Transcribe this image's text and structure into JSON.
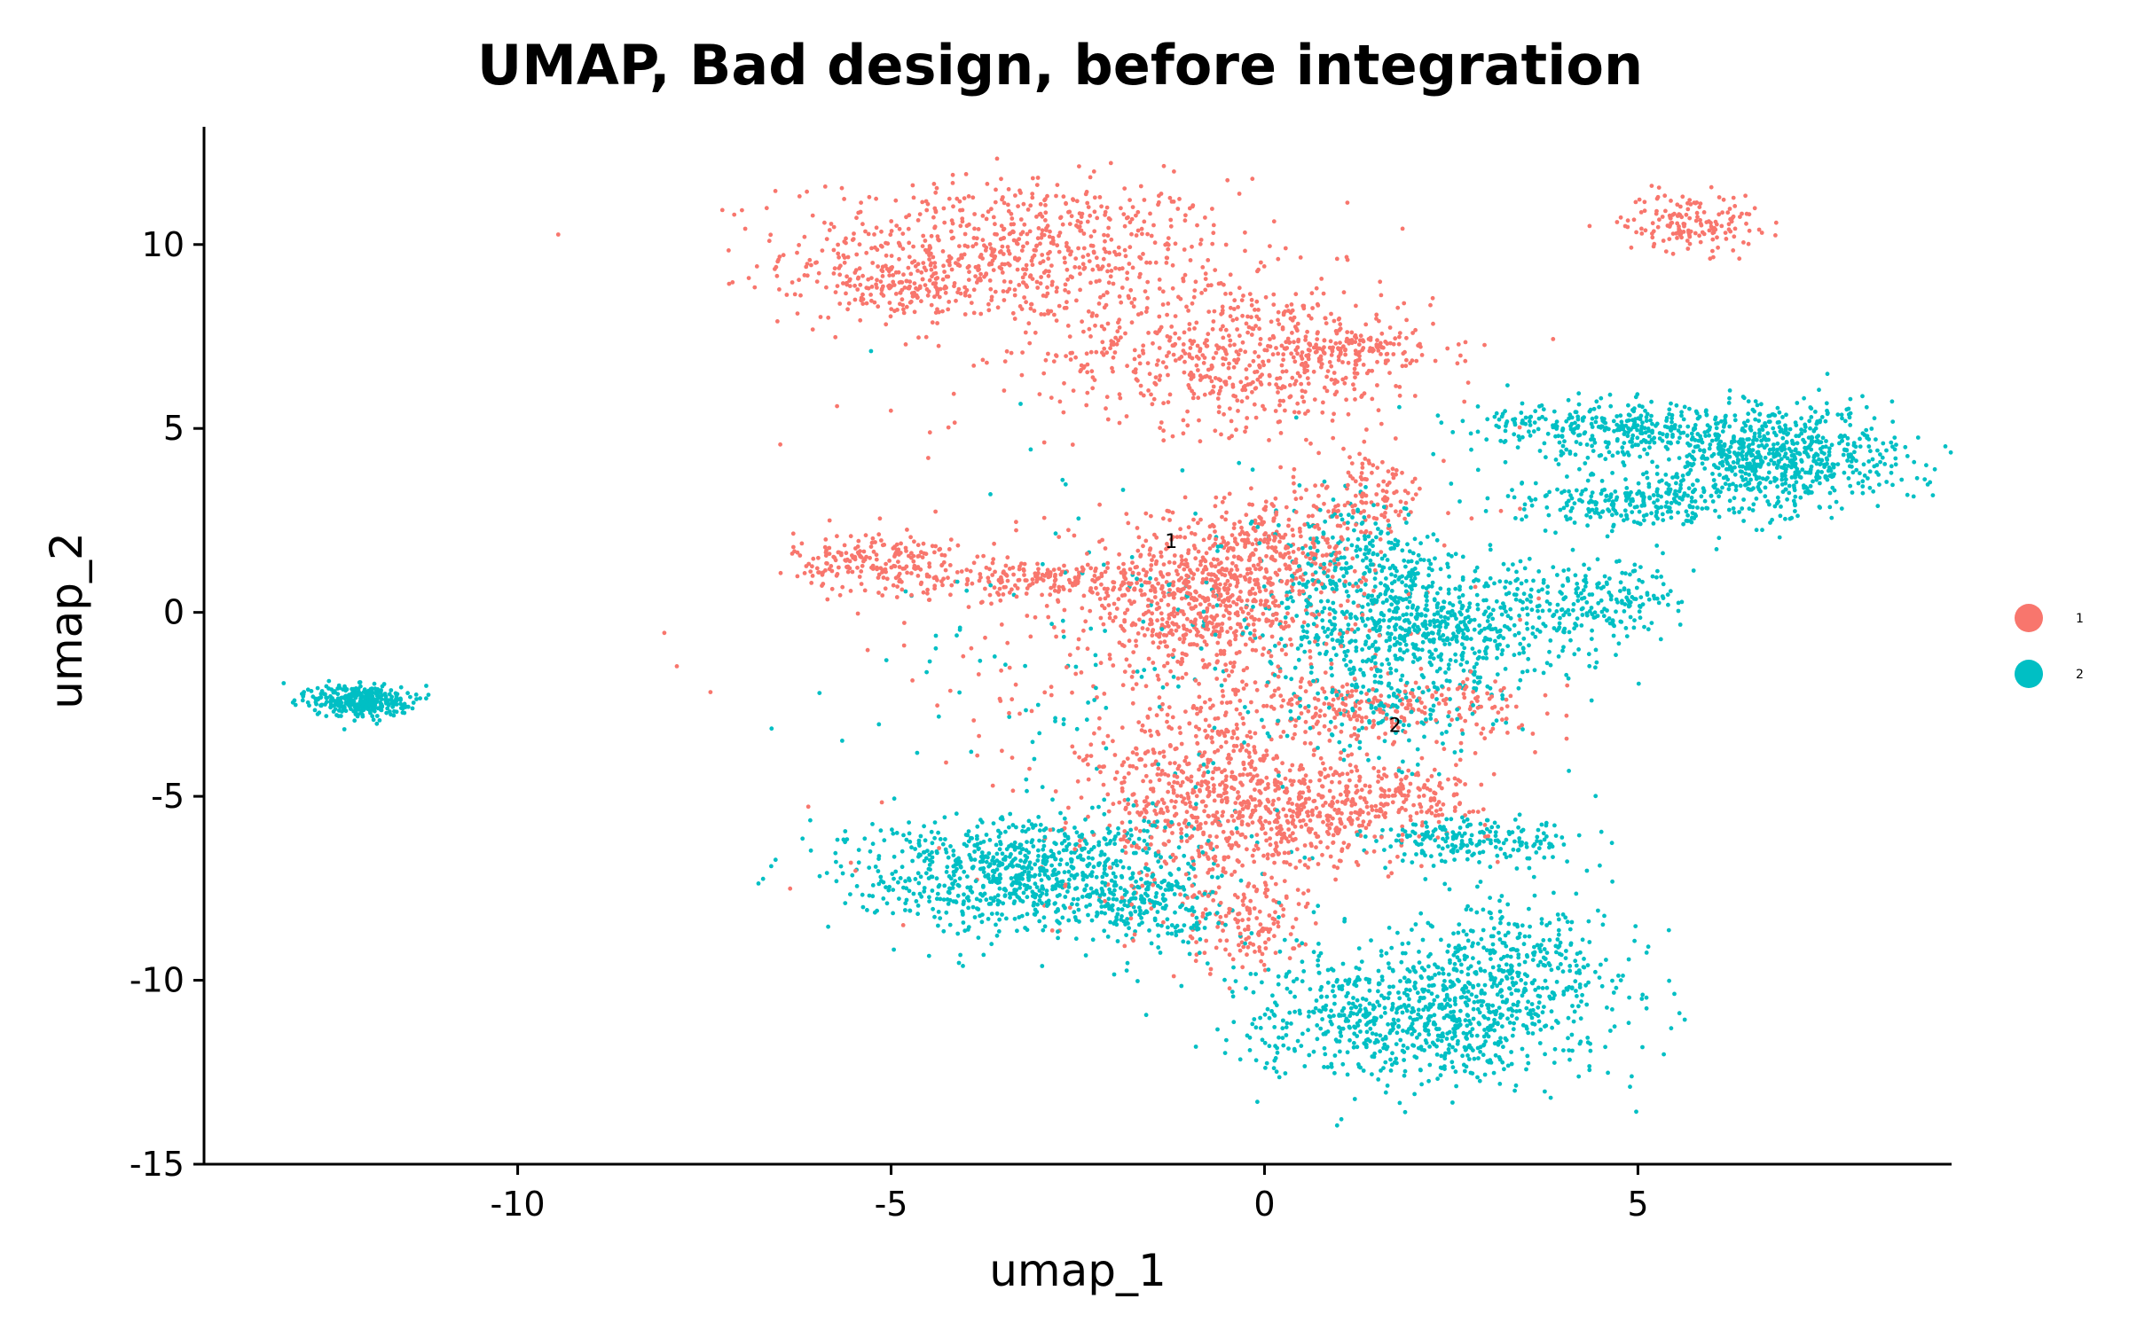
{
  "chart_data": {
    "type": "scatter",
    "title": "UMAP, Bad design, before integration",
    "xlabel": "umap_1",
    "ylabel": "umap_2",
    "xlim": [
      -14.2,
      9.2
    ],
    "ylim": [
      -15,
      13.2
    ],
    "xticks": [
      {
        "value": -10,
        "label": "-10"
      },
      {
        "value": -5,
        "label": "-5"
      },
      {
        "value": 0,
        "label": "0"
      },
      {
        "value": 5,
        "label": "5"
      }
    ],
    "yticks": [
      {
        "value": 10,
        "label": "10"
      },
      {
        "value": 5,
        "label": "5"
      },
      {
        "value": 0,
        "label": "0"
      },
      {
        "value": -5,
        "label": "-5"
      },
      {
        "value": -10,
        "label": "-10"
      },
      {
        "value": -15,
        "label": "-15"
      }
    ],
    "legend_position": "right",
    "grid": false,
    "series": [
      {
        "name": "1",
        "color": "#F8766D",
        "clusters": [
          {
            "cx": -3.4,
            "cy": 9.8,
            "sx": 1.5,
            "sy": 1.0,
            "n": 750
          },
          {
            "cx": -5.0,
            "cy": 8.8,
            "sx": 0.6,
            "sy": 0.35,
            "n": 120
          },
          {
            "cx": -0.3,
            "cy": 7.0,
            "sx": 1.3,
            "sy": 1.0,
            "n": 650
          },
          {
            "cx": 1.3,
            "cy": 7.2,
            "sx": 0.4,
            "sy": 0.3,
            "n": 90
          },
          {
            "cx": 5.7,
            "cy": 10.6,
            "sx": 0.45,
            "sy": 0.4,
            "n": 160
          },
          {
            "cx": -5.2,
            "cy": 1.4,
            "sx": 0.55,
            "sy": 0.4,
            "n": 200
          },
          {
            "cx": -3.0,
            "cy": 0.9,
            "sx": 1.0,
            "sy": 0.25,
            "n": 200
          },
          {
            "cx": -0.8,
            "cy": 0.3,
            "sx": 0.9,
            "sy": 1.1,
            "n": 700
          },
          {
            "cx": 0.2,
            "cy": 1.6,
            "sx": 0.5,
            "sy": 0.7,
            "n": 200
          },
          {
            "cx": 1.4,
            "cy": 3.2,
            "sx": 0.4,
            "sy": 0.6,
            "n": 120
          },
          {
            "cx": 1.7,
            "cy": -2.6,
            "sx": 0.9,
            "sy": 0.4,
            "n": 220
          },
          {
            "cx": -0.6,
            "cy": -5.2,
            "sx": 0.9,
            "sy": 1.4,
            "n": 750
          },
          {
            "cx": 0.7,
            "cy": -5.4,
            "sx": 0.6,
            "sy": 0.6,
            "n": 200
          },
          {
            "cx": 2.0,
            "cy": -5.0,
            "sx": 0.5,
            "sy": 0.4,
            "n": 140
          },
          {
            "cx": -0.3,
            "cy": -8.6,
            "sx": 0.4,
            "sy": 0.6,
            "n": 120
          }
        ],
        "stragglers": 250
      },
      {
        "name": "2",
        "color": "#00BFC4",
        "clusters": [
          {
            "cx": -12.1,
            "cy": -2.4,
            "sx": 0.32,
            "sy": 0.22,
            "n": 360
          },
          {
            "cx": -3.2,
            "cy": -7.1,
            "sx": 1.2,
            "sy": 0.8,
            "n": 900
          },
          {
            "cx": -1.4,
            "cy": -8.2,
            "sx": 0.5,
            "sy": 0.6,
            "n": 140
          },
          {
            "cx": 2.0,
            "cy": -11.0,
            "sx": 1.1,
            "sy": 0.9,
            "n": 800
          },
          {
            "cx": 3.4,
            "cy": -9.5,
            "sx": 0.8,
            "sy": 1.0,
            "n": 350
          },
          {
            "cx": 2.8,
            "cy": -6.2,
            "sx": 0.7,
            "sy": 0.3,
            "n": 200
          },
          {
            "cx": 2.2,
            "cy": -0.4,
            "sx": 1.1,
            "sy": 0.9,
            "n": 800
          },
          {
            "cx": 1.3,
            "cy": 1.5,
            "sx": 0.5,
            "sy": 0.7,
            "n": 180
          },
          {
            "cx": 4.6,
            "cy": 0.5,
            "sx": 0.5,
            "sy": 0.5,
            "n": 150
          },
          {
            "cx": 6.9,
            "cy": 4.2,
            "sx": 0.8,
            "sy": 0.7,
            "n": 700
          },
          {
            "cx": 4.8,
            "cy": 5.0,
            "sx": 1.0,
            "sy": 0.4,
            "n": 350
          },
          {
            "cx": 5.0,
            "cy": 3.0,
            "sx": 0.8,
            "sy": 0.35,
            "n": 260
          },
          {
            "cx": 1.6,
            "cy": -2.8,
            "sx": 0.7,
            "sy": 0.7,
            "n": 120
          }
        ],
        "stragglers": 200
      }
    ],
    "cluster_labels": [
      {
        "text": "1",
        "x": -1.25,
        "y": 1.75
      },
      {
        "text": "2",
        "x": 1.75,
        "y": -3.25
      }
    ]
  }
}
